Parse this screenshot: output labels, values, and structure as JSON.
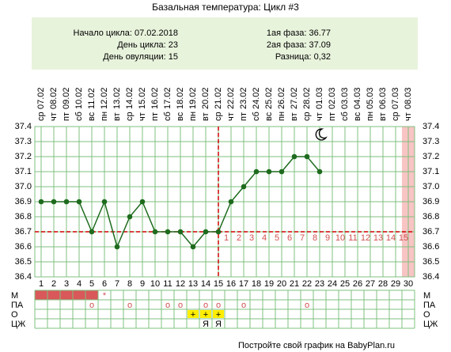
{
  "chart_data": {
    "type": "line",
    "title": "Базальная температура: Цикл #3",
    "info_left": [
      "Начало цикла: 07.02.2018",
      "День цикла: 23",
      "День овуляции: 15"
    ],
    "info_right": [
      "1ая фаза: 36.77",
      "2ая фаза: 37.09",
      "Разница: 0,32"
    ],
    "categories": [
      "1",
      "2",
      "3",
      "4",
      "5",
      "6",
      "7",
      "8",
      "9",
      "10",
      "11",
      "12",
      "13",
      "14",
      "15",
      "16",
      "17",
      "18",
      "19",
      "20",
      "21",
      "22",
      "23",
      "24",
      "25",
      "26",
      "27",
      "28",
      "29",
      "30"
    ],
    "weekdays": [
      "ср",
      "чт",
      "пт",
      "сб",
      "вс",
      "пн",
      "вт",
      "ср",
      "чт",
      "пт",
      "сб",
      "вс",
      "пн",
      "вт",
      "ср",
      "чт",
      "пт",
      "сб",
      "вс",
      "пн",
      "вт",
      "ср",
      "чт",
      "пт",
      "сб",
      "вс",
      "пн",
      "вт",
      "ср",
      "чт"
    ],
    "dates": [
      "07.02",
      "08.02",
      "09.02",
      "10.02",
      "11.02",
      "12.02",
      "13.02",
      "14.02",
      "15.02",
      "16.02",
      "17.02",
      "18.02",
      "19.02",
      "20.02",
      "21.02",
      "22.02",
      "23.02",
      "24.02",
      "25.02",
      "26.02",
      "27.02",
      "28.02",
      "01.03",
      "02.03",
      "03.03",
      "04.03",
      "05.03",
      "06.03",
      "07.03",
      "08.03"
    ],
    "values": [
      36.9,
      36.9,
      36.9,
      36.9,
      36.7,
      36.9,
      36.6,
      36.8,
      36.9,
      36.7,
      36.7,
      36.7,
      36.6,
      36.7,
      36.7,
      36.9,
      37.0,
      37.1,
      37.1,
      37.1,
      37.2,
      37.2,
      37.1,
      null,
      null,
      null,
      null,
      null,
      null,
      null
    ],
    "color": "#1e6b1e",
    "ylim": [
      36.4,
      37.4
    ],
    "yticks": [
      36.4,
      36.5,
      36.6,
      36.7,
      36.8,
      36.9,
      {
        "value": 37.0,
        "label": "37.0"
      },
      37.1,
      37.2,
      37.3,
      37.4
    ],
    "grid": true,
    "coverline": 36.7,
    "ovulation_day": 15,
    "phase2_days": [
      1,
      2,
      3,
      4,
      5,
      6,
      7,
      8,
      9,
      10,
      11,
      12,
      13,
      14,
      15
    ],
    "table_rows": [
      {
        "label": "М",
        "period_days": [
          1,
          2,
          3,
          4,
          5
        ],
        "spot_days": [
          6
        ],
        "symbol": "*"
      },
      {
        "label": "ПА",
        "days": [
          5,
          8,
          11,
          12,
          14,
          15,
          17,
          22
        ],
        "symbol": "о"
      },
      {
        "label": "О",
        "days": [
          13,
          14,
          15
        ],
        "symbol": "+"
      },
      {
        "label": "ЦЖ",
        "days": [
          14,
          15
        ],
        "symbol": "Я"
      }
    ],
    "footer": "Постройте свой график на BabyPlan.ru"
  }
}
